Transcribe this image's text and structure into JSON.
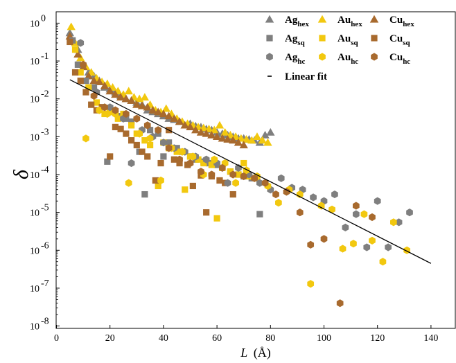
{
  "chart_data": {
    "type": "scatter",
    "title": "",
    "xlabel": "L (Å)",
    "xlabel_italic": "L",
    "xlabel_unit": "(Å)",
    "ylabel": "δ",
    "xlim": [
      0,
      150
    ],
    "ylim_log10": [
      -8,
      0.3
    ],
    "y_scale": "log",
    "x_ticks": [
      0,
      20,
      40,
      60,
      80,
      100,
      120,
      140
    ],
    "x_tick_labels": [
      "0",
      "20",
      "40",
      "60",
      "80",
      "100",
      "120",
      "140"
    ],
    "y_ticks": [
      1e-08,
      1e-07,
      1e-06,
      1e-05,
      0.0001,
      0.001,
      0.01,
      0.1,
      1
    ],
    "y_tick_labels": [
      {
        "base": "10",
        "exp": "-8"
      },
      {
        "base": "10",
        "exp": "-7"
      },
      {
        "base": "10",
        "exp": "-6"
      },
      {
        "base": "10",
        "exp": "-5"
      },
      {
        "base": "10",
        "exp": "-4"
      },
      {
        "base": "10",
        "exp": "-3"
      },
      {
        "base": "10",
        "exp": "-2"
      },
      {
        "base": "10",
        "exp": "-1"
      },
      {
        "base": "10",
        "exp": "0"
      }
    ],
    "legend_position": "top-right",
    "legend": [
      {
        "main": "Ag",
        "sub": "hex",
        "series": "Ag_hex"
      },
      {
        "main": "Au",
        "sub": "hex",
        "series": "Au_hex"
      },
      {
        "main": "Cu",
        "sub": "hex",
        "series": "Cu_hex"
      },
      {
        "main": "Ag",
        "sub": "sq",
        "series": "Ag_sq"
      },
      {
        "main": "Au",
        "sub": "sq",
        "series": "Au_sq"
      },
      {
        "main": "Cu",
        "sub": "sq",
        "series": "Cu_sq"
      },
      {
        "main": "Ag",
        "sub": "hc",
        "series": "Ag_hc"
      },
      {
        "main": "Au",
        "sub": "hc",
        "series": "Au_hc"
      },
      {
        "main": "Cu",
        "sub": "hc",
        "series": "Cu_hc"
      },
      {
        "main": "Linear fit",
        "sub": "",
        "series": "fit"
      }
    ],
    "colors": {
      "Ag": "#7f7f7f",
      "Au": "#f2c80f",
      "Cu": "#a86a2e",
      "fit": "#000000"
    },
    "series": [
      {
        "name": "Ag_hex",
        "metal": "Ag",
        "marker": "triangle",
        "x": [
          5,
          8,
          10,
          12,
          14,
          16,
          18,
          20,
          22,
          24,
          26,
          28,
          30,
          32,
          34,
          36,
          38,
          40,
          42,
          44,
          46,
          48,
          50,
          52,
          54,
          56,
          58,
          60,
          62,
          64,
          66,
          68,
          70,
          72,
          74,
          76,
          78,
          80
        ],
        "y": [
          0.55,
          0.2,
          0.08,
          0.05,
          0.04,
          0.03,
          0.02,
          0.018,
          0.015,
          0.012,
          0.01,
          0.009,
          0.008,
          0.007,
          0.005,
          0.0045,
          0.004,
          0.0035,
          0.003,
          0.0028,
          0.0025,
          0.002,
          0.0022,
          0.0019,
          0.0018,
          0.0016,
          0.0015,
          0.0013,
          0.0012,
          0.0011,
          0.001,
          0.0009,
          0.0009,
          0.00085,
          0.0008,
          0.0007,
          0.0011,
          0.0013
        ]
      },
      {
        "name": "Au_hex",
        "metal": "Au",
        "marker": "triangle",
        "x": [
          5.5,
          7,
          9,
          11,
          13,
          15,
          17,
          19,
          21,
          23,
          25,
          27,
          29,
          31,
          33,
          35,
          37,
          39,
          41,
          43,
          45,
          47,
          49,
          51,
          53,
          55,
          57,
          59,
          61,
          63,
          65,
          67,
          69,
          71,
          73,
          75,
          77,
          79
        ],
        "y": [
          0.8,
          0.3,
          0.12,
          0.07,
          0.05,
          0.035,
          0.028,
          0.025,
          0.02,
          0.016,
          0.013,
          0.016,
          0.011,
          0.01,
          0.011,
          0.007,
          0.005,
          0.0045,
          0.0055,
          0.004,
          0.003,
          0.0025,
          0.0022,
          0.002,
          0.0018,
          0.0017,
          0.0016,
          0.0015,
          0.002,
          0.0013,
          0.0011,
          0.001,
          0.0009,
          0.00085,
          0.0008,
          0.001,
          0.0008,
          0.0007
        ]
      },
      {
        "name": "Cu_hex",
        "metal": "Cu",
        "marker": "triangle",
        "x": [
          5,
          8,
          10,
          12,
          14,
          16,
          18,
          20,
          22,
          24,
          26,
          28,
          30,
          32,
          34,
          36,
          38,
          40,
          42,
          44,
          46,
          48,
          50,
          52,
          54,
          56,
          58,
          60,
          62,
          64,
          66,
          68,
          70
        ],
        "y": [
          0.45,
          0.15,
          0.07,
          0.04,
          0.03,
          0.028,
          0.022,
          0.016,
          0.013,
          0.011,
          0.01,
          0.009,
          0.007,
          0.0065,
          0.006,
          0.005,
          0.0045,
          0.004,
          0.0035,
          0.003,
          0.0025,
          0.002,
          0.0018,
          0.0015,
          0.0013,
          0.0012,
          0.0011,
          0.001,
          0.0009,
          0.00085,
          0.0008,
          0.0007,
          0.0006
        ]
      },
      {
        "name": "Ag_sq",
        "metal": "Ag",
        "marker": "square",
        "x": [
          6,
          8,
          11,
          14,
          17,
          19,
          21,
          24,
          26,
          28,
          31,
          33,
          35,
          38,
          40,
          42,
          45,
          47,
          50,
          52,
          55,
          57,
          60,
          62,
          65,
          68,
          70,
          73,
          76
        ],
        "y": [
          0.35,
          0.08,
          0.03,
          0.02,
          0.006,
          0.00022,
          0.005,
          0.0035,
          0.003,
          0.0025,
          0.0004,
          3e-05,
          0.0015,
          0.0012,
          0.0003,
          0.0007,
          0.0005,
          0.0004,
          0.0003,
          0.00025,
          0.00022,
          0.0002,
          0.00018,
          0.00015,
          0.00012,
          0.0001,
          9e-05,
          8e-05,
          9e-06
        ]
      },
      {
        "name": "Au_sq",
        "metal": "Au",
        "marker": "square",
        "x": [
          7,
          9,
          12,
          15,
          18,
          20,
          23,
          25,
          28,
          30,
          33,
          35,
          38,
          40,
          42,
          45,
          48,
          50,
          53,
          55,
          58,
          60,
          62,
          65,
          68,
          70,
          72,
          75
        ],
        "y": [
          0.2,
          0.05,
          0.02,
          0.008,
          0.004,
          0.0045,
          0.003,
          0.004,
          0.002,
          0.0012,
          0.0008,
          0.0006,
          5e-05,
          0.0007,
          0.0005,
          0.0004,
          4e-05,
          0.0003,
          0.00025,
          0.0002,
          0.00018,
          7e-06,
          0.00015,
          0.00012,
          0.0001,
          0.0002,
          9e-05,
          8e-05
        ]
      },
      {
        "name": "Cu_sq",
        "metal": "Cu",
        "marker": "square",
        "x": [
          5,
          7,
          9,
          11,
          13,
          15,
          17,
          20,
          22,
          24,
          26,
          28,
          30,
          32,
          34,
          37,
          39,
          42,
          44,
          46,
          49,
          51,
          54,
          56,
          58,
          61,
          63,
          66
        ],
        "y": [
          0.32,
          0.05,
          0.03,
          0.015,
          0.007,
          0.005,
          0.006,
          0.0003,
          0.0018,
          0.0016,
          0.0012,
          0.0008,
          0.0006,
          0.0004,
          0.0003,
          7e-05,
          0.0002,
          0.0015,
          0.00025,
          0.0002,
          0.00018,
          5e-05,
          9.5e-05,
          1e-05,
          9e-05,
          7e-05,
          6e-05,
          3e-05
        ]
      },
      {
        "name": "Ag_hc",
        "metal": "Ag",
        "marker": "hexagon",
        "x": [
          9,
          15,
          20,
          25,
          28,
          32,
          36,
          40,
          44,
          48,
          52,
          56,
          60,
          64,
          68,
          72,
          76,
          80,
          84,
          88,
          92,
          96,
          100,
          104,
          108,
          112,
          116,
          120,
          124,
          128,
          132
        ],
        "y": [
          0.3,
          0.015,
          0.006,
          0.003,
          0.0002,
          0.0015,
          0.001,
          0.0007,
          0.0005,
          0.0004,
          0.0003,
          0.00025,
          0.0002,
          6e-05,
          0.00015,
          0.0001,
          6e-05,
          4e-05,
          8e-05,
          4.5e-05,
          4e-05,
          2.5e-05,
          2e-05,
          3e-05,
          4e-06,
          9e-06,
          1.2e-06,
          2e-05,
          1.2e-06,
          5.5e-06,
          1e-05
        ]
      },
      {
        "name": "Au_hc",
        "metal": "Au",
        "marker": "hexagon",
        "x": [
          11,
          16,
          19,
          22,
          27,
          31,
          35,
          39,
          43,
          47,
          51,
          55,
          59,
          63,
          67,
          71,
          75,
          79,
          83,
          87,
          91,
          95,
          99,
          103,
          107,
          111,
          115,
          118,
          122,
          126,
          131
        ],
        "y": [
          0.0009,
          0.005,
          0.004,
          0.004,
          6e-05,
          0.0012,
          0.0009,
          7e-05,
          0.0005,
          0.0004,
          0.0003,
          0.0001,
          0.00025,
          0.0002,
          6e-05,
          0.00013,
          9e-05,
          5e-05,
          1.8e-05,
          4e-05,
          3e-05,
          1.3e-07,
          1.5e-05,
          1.2e-05,
          1.1e-06,
          1.5e-06,
          9e-06,
          1.8e-06,
          5e-07,
          5.5e-06,
          1e-06
        ]
      },
      {
        "name": "Cu_hc",
        "metal": "Cu",
        "marker": "hexagon",
        "x": [
          10,
          14,
          18,
          22,
          26,
          30,
          34,
          38,
          42,
          46,
          50,
          54,
          58,
          62,
          66,
          70,
          74,
          78,
          82,
          86,
          91,
          95,
          100,
          106,
          112,
          118
        ],
        "y": [
          0.08,
          0.012,
          0.006,
          0.005,
          0.004,
          0.003,
          0.002,
          0.0015,
          0.0005,
          0.00025,
          0.0002,
          0.00012,
          0.0001,
          0.00015,
          0.0001,
          9e-05,
          8e-05,
          6e-05,
          3e-05,
          3.5e-05,
          1e-05,
          1.4e-06,
          2e-06,
          4e-08,
          1.5e-05,
          7.5e-06
        ]
      },
      {
        "name": "fit",
        "metal": "fit",
        "marker": "line",
        "x": [
          5,
          140
        ],
        "y": [
          0.032,
          4.5e-07
        ]
      }
    ]
  }
}
